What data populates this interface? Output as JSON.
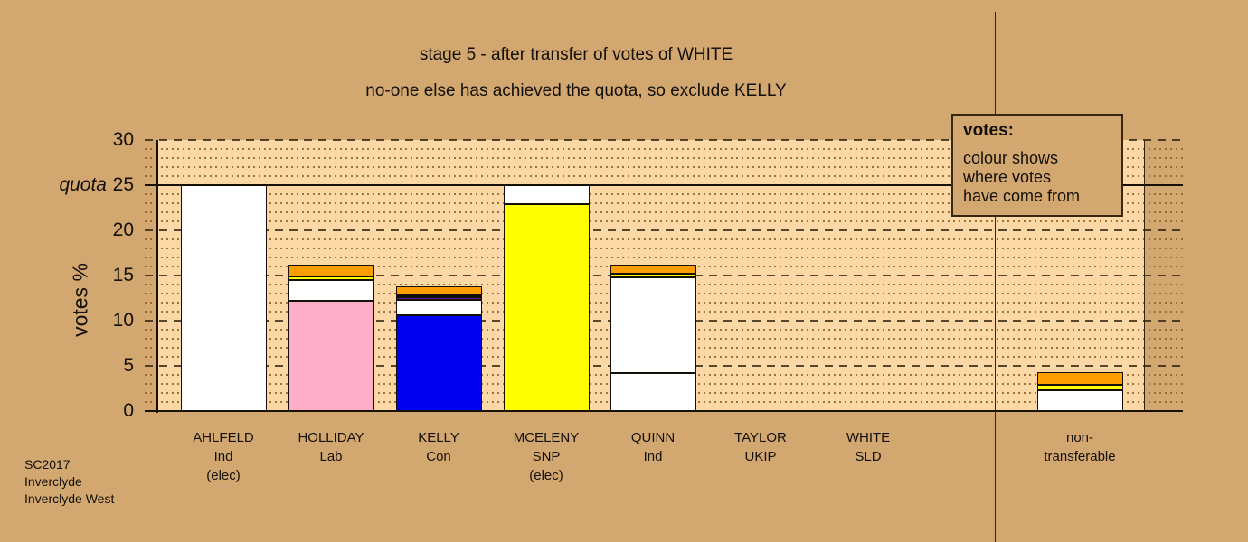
{
  "title": {
    "line1": "stage 5 - after transfer of votes of WHITE",
    "line2": "no-one else has achieved the quota, so exclude KELLY"
  },
  "y_axis": {
    "title": "votes %",
    "quota_label": "quota",
    "ticks": [
      0,
      5,
      10,
      15,
      20,
      25,
      30
    ]
  },
  "legend": {
    "heading": "votes:",
    "body_lines": [
      "colour shows",
      "where votes",
      "have come from"
    ]
  },
  "footer": {
    "lines": [
      "SC2017",
      "Inverclyde",
      "Inverclyde West"
    ]
  },
  "colors": {
    "page_background": "#D2A770",
    "plot_background": "#FBD8A6",
    "ind_white": "#FFFFFF",
    "lab_pink": "#FFAEC9",
    "con_blue": "#0000F0",
    "snp_yellow": "#FFFF00",
    "ukip_purple": "#5A1E8A",
    "sld_orange": "#FF9E00"
  },
  "chart_data": {
    "type": "bar",
    "stacked": true,
    "ylabel": "votes %",
    "ylim": [
      0,
      30
    ],
    "ytick_interval": 5,
    "quota": 25,
    "grid": "dotted minor every 1, dashed major every 5, solid at quota 25 and baseline 0",
    "categories": [
      {
        "key": "AHLFELD",
        "label_lines": [
          "AHLFELD",
          "Ind",
          "(elec)"
        ]
      },
      {
        "key": "HOLLIDAY",
        "label_lines": [
          "HOLLIDAY",
          "Lab"
        ]
      },
      {
        "key": "KELLY",
        "label_lines": [
          "KELLY",
          "Con"
        ]
      },
      {
        "key": "MCELENY",
        "label_lines": [
          "MCELENY",
          "SNP",
          "(elec)"
        ]
      },
      {
        "key": "QUINN",
        "label_lines": [
          "QUINN",
          "Ind"
        ]
      },
      {
        "key": "TAYLOR",
        "label_lines": [
          "TAYLOR",
          "UKIP"
        ]
      },
      {
        "key": "WHITE",
        "label_lines": [
          "WHITE",
          "SLD"
        ]
      },
      {
        "key": "non-transferable",
        "label_lines": [
          "non-",
          "transferable"
        ]
      }
    ],
    "bars": [
      {
        "category": "AHLFELD",
        "total": 25.0,
        "segments": [
          {
            "source": "AHLFELD (Ind)",
            "color_key": "ind_white",
            "value": 25.0
          }
        ]
      },
      {
        "category": "HOLLIDAY",
        "total": 16.2,
        "segments": [
          {
            "source": "HOLLIDAY (Lab)",
            "color_key": "lab_pink",
            "value": 12.2
          },
          {
            "source": "from AHLFELD (Ind)",
            "color_key": "ind_white",
            "value": 2.3
          },
          {
            "source": "from MCELENY (SNP)",
            "color_key": "snp_yellow",
            "value": 0.4
          },
          {
            "source": "from WHITE (SLD)",
            "color_key": "sld_orange",
            "value": 1.3
          }
        ]
      },
      {
        "category": "KELLY",
        "total": 13.8,
        "segments": [
          {
            "source": "KELLY (Con)",
            "color_key": "con_blue",
            "value": 10.6
          },
          {
            "source": "from AHLFELD (Ind)",
            "color_key": "ind_white",
            "value": 1.7
          },
          {
            "source": "from TAYLOR (UKIP)",
            "color_key": "ukip_purple",
            "value": 0.3
          },
          {
            "source": "from MCELENY (SNP)",
            "color_key": "snp_yellow",
            "value": 0.2
          },
          {
            "source": "from WHITE (SLD)",
            "color_key": "sld_orange",
            "value": 1.0
          }
        ]
      },
      {
        "category": "MCELENY",
        "total": 25.0,
        "segments": [
          {
            "source": "MCELENY (SNP)",
            "color_key": "snp_yellow",
            "value": 22.9
          },
          {
            "source": "from AHLFELD (Ind)",
            "color_key": "ind_white",
            "value": 2.1
          }
        ]
      },
      {
        "category": "QUINN",
        "total": 16.2,
        "segments": [
          {
            "source": "QUINN (Ind)",
            "color_key": "ind_white",
            "value": 4.2
          },
          {
            "source": "from AHLFELD (Ind)",
            "color_key": "ind_white",
            "value": 10.6
          },
          {
            "source": "from MCELENY (SNP)",
            "color_key": "snp_yellow",
            "value": 0.4
          },
          {
            "source": "from WHITE (SLD)",
            "color_key": "sld_orange",
            "value": 1.0
          }
        ]
      },
      {
        "category": "TAYLOR",
        "total": 0,
        "segments": []
      },
      {
        "category": "WHITE",
        "total": 0,
        "segments": []
      },
      {
        "category": "non-transferable",
        "total": 4.3,
        "segments": [
          {
            "source": "non-transferable",
            "color_key": "ind_white",
            "value": 2.3
          },
          {
            "source": "from MCELENY (SNP)",
            "color_key": "snp_yellow",
            "value": 0.6
          },
          {
            "source": "from WHITE (SLD)",
            "color_key": "sld_orange",
            "value": 1.4
          }
        ]
      }
    ]
  }
}
